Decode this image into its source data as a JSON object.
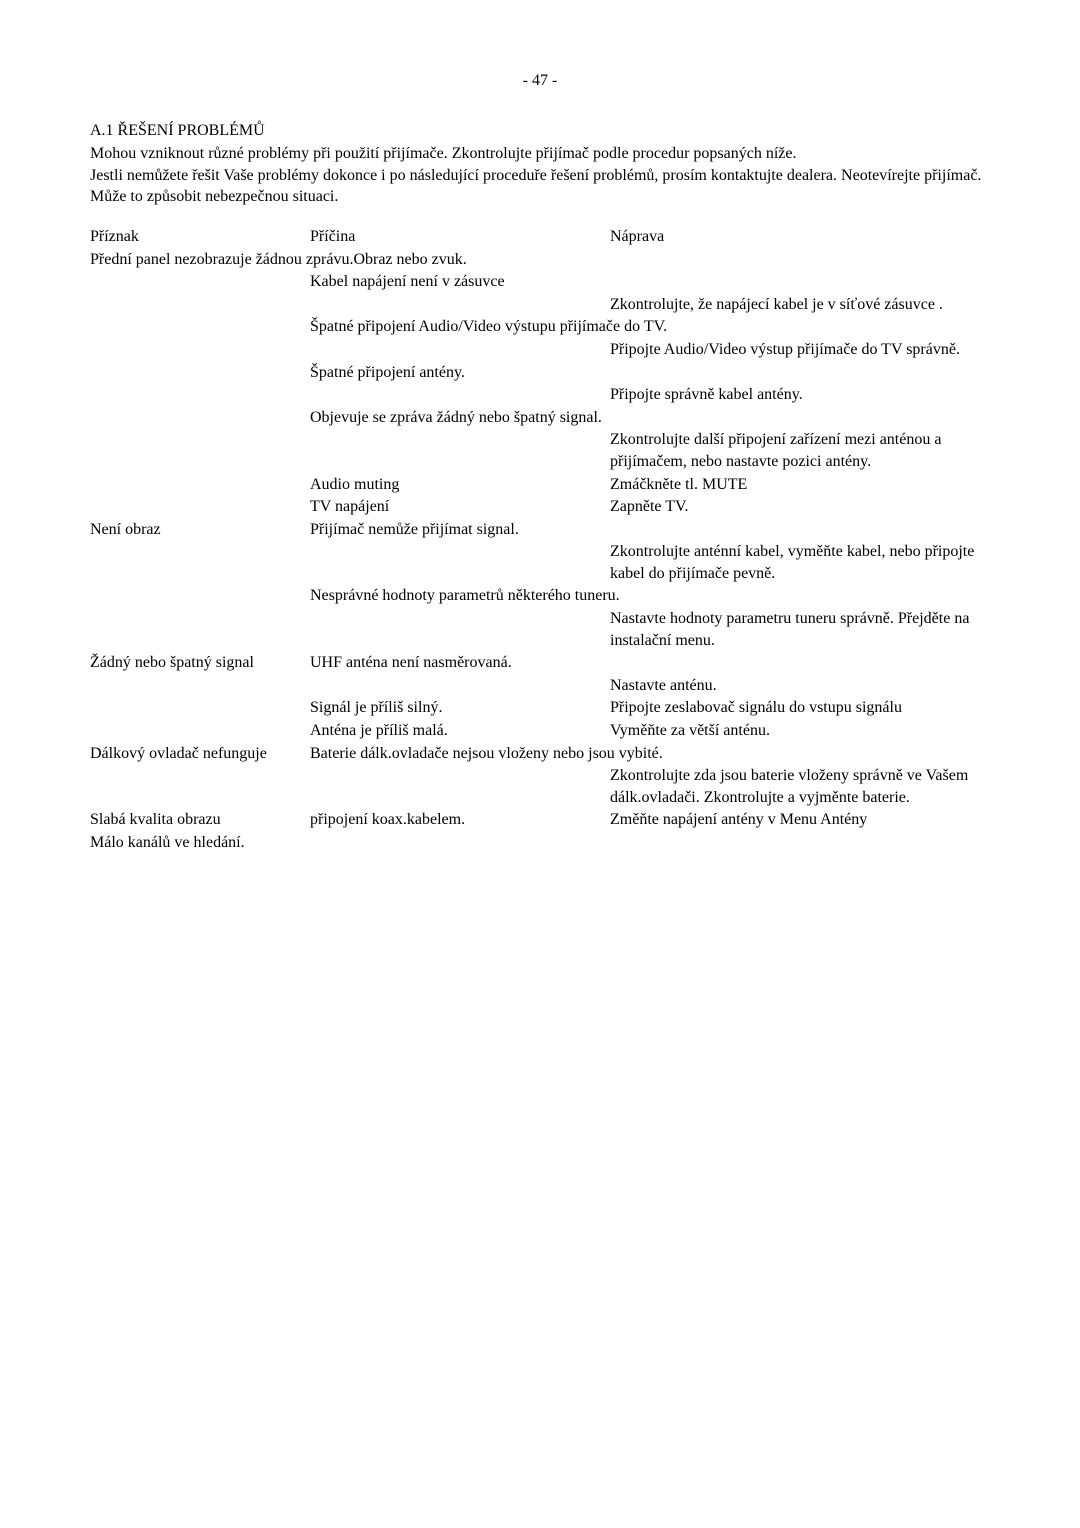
{
  "pageNumber": "- 47 -",
  "section": {
    "title": "A.1 ŘEŠENÍ PROBLÉMŮ",
    "intro": "Mohou vzniknout různé problémy při použití přijímače. Zkontrolujte přijímač podle procedur popsaných níže.\nJestli nemůžete řešit Vaše problémy dokonce i po následující proceduře řešení problémů, prosím kontaktujte dealera. Neotevírejte přijímač. Může to způsobit nebezpečnou situaci."
  },
  "headers": {
    "c1": "Příznak",
    "c2": "Příčina",
    "c3": "Náprava"
  },
  "r1": {
    "symptom": "Přední panel nezobrazuje žádnou zprávu.Obraz nebo zvuk.",
    "cause1": "Kabel napájení není v zásuvce",
    "fix1": "Zkontrolujte, že napájecí kabel je v síťové zásuvce .",
    "cause2": "Špatné připojení Audio/Video výstupu přijímače do TV.",
    "fix2": "Připojte Audio/Video výstup přijímače do TV správně.",
    "cause3": "Špatné připojení antény.",
    "fix3": "Připojte správně kabel antény.",
    "cause4": "Objevuje se zpráva žádný nebo špatný signal.",
    "fix4": "Zkontrolujte další připojení zařízení mezi anténou a přijímačem, nebo nastavte pozici antény.",
    "cause5": "Audio muting",
    "fix5": "Zmáčkněte tl. MUTE",
    "cause6": "TV napájení",
    "fix6": "Zapněte TV."
  },
  "r2": {
    "symptom": "Není obraz",
    "cause1": "Přijímač nemůže přijímat signal.",
    "fix1": "Zkontrolujte anténní kabel, vyměňte kabel, nebo připojte kabel do přijímače pevně.",
    "cause2": "Nesprávné hodnoty parametrů některého tuneru.",
    "fix2": "Nastavte hodnoty parametru tuneru správně. Přejděte na instalační menu."
  },
  "r3": {
    "symptom": "Žádný nebo špatný signal",
    "cause1": "UHF anténa není nasměrovaná.",
    "fix1": "Nastavte anténu.",
    "cause2": "Signál je příliš silný.",
    "fix2": "Připojte zeslabovač signálu do vstupu signálu",
    "cause3": "Anténa je příliš malá.",
    "fix3": "Vyměňte za větší anténu."
  },
  "r4": {
    "symptom": "Dálkový ovladač nefunguje",
    "cause1": "Baterie dálk.ovladače nejsou vloženy nebo jsou vybité.",
    "fix1": "Zkontrolujte zda jsou baterie vloženy správně ve Vašem dálk.ovladači. Zkontrolujte a vyjměnte baterie."
  },
  "r5": {
    "symptom": "Slabá kvalita obrazu",
    "cause1": "připojení koax.kabelem.",
    "fix1": "Změňte napájení antény v Menu Antény"
  },
  "r6": {
    "symptom": "Málo kanálů ve hledání."
  }
}
